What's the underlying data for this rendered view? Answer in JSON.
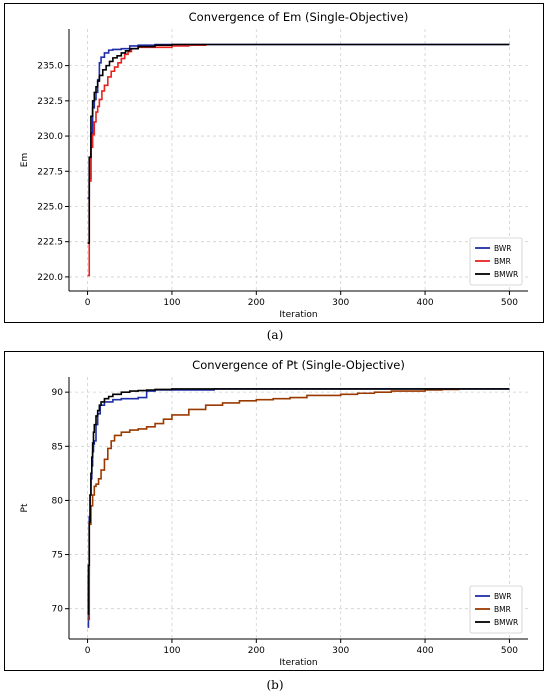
{
  "chart_data": [
    {
      "type": "line",
      "title": "Convergence of Em (Single-Objective)",
      "xlabel": "Iteration",
      "ylabel": "Em",
      "xlim": [
        -22,
        522
      ],
      "ylim": [
        219.0,
        237.6
      ],
      "xticks": [
        0,
        100,
        200,
        300,
        400,
        500
      ],
      "yticks": [
        220.0,
        222.5,
        225.0,
        227.5,
        230.0,
        232.5,
        235.0
      ],
      "ytick_labels": [
        "220.0",
        "222.5",
        "225.0",
        "227.5",
        "230.0",
        "232.5",
        "235.0"
      ],
      "grid": true,
      "legend": "bottom-right",
      "series": [
        {
          "name": "BWR",
          "color": "#1f2fa8",
          "x": [
            0,
            2,
            4,
            6,
            8,
            10,
            12,
            14,
            16,
            20,
            25,
            30,
            40,
            50,
            60,
            80,
            100,
            500
          ],
          "y": [
            225.6,
            227.0,
            230.2,
            232.0,
            232.6,
            233.1,
            234.0,
            235.2,
            235.6,
            235.9,
            236.1,
            236.15,
            236.2,
            236.4,
            236.45,
            236.5,
            236.5,
            236.5
          ]
        },
        {
          "name": "BMR",
          "color": "#e8231f",
          "x": [
            0,
            2,
            4,
            6,
            8,
            10,
            12,
            14,
            17,
            20,
            24,
            28,
            32,
            36,
            40,
            44,
            48,
            52,
            60,
            80,
            100,
            120,
            140
          ],
          "y": [
            220.1,
            226.8,
            229.2,
            230.1,
            231.0,
            231.7,
            232.1,
            232.6,
            233.2,
            233.6,
            234.2,
            234.6,
            234.9,
            235.2,
            235.5,
            235.8,
            236.0,
            236.2,
            236.3,
            236.3,
            236.4,
            236.45,
            236.5
          ]
        },
        {
          "name": "BMWR",
          "color": "#000000",
          "x": [
            0,
            2,
            4,
            6,
            8,
            10,
            12,
            14,
            18,
            22,
            26,
            30,
            35,
            40,
            45,
            50,
            60,
            80,
            100,
            500
          ],
          "y": [
            222.4,
            228.5,
            231.4,
            232.5,
            233.1,
            233.5,
            233.9,
            234.3,
            234.7,
            235.0,
            235.3,
            235.55,
            235.7,
            235.9,
            236.05,
            236.2,
            236.35,
            236.45,
            236.5,
            236.5
          ]
        }
      ]
    },
    {
      "type": "line",
      "title": "Convergence of Pt (Single-Objective)",
      "xlabel": "Iteration",
      "ylabel": "Pt",
      "xlim": [
        -22,
        522
      ],
      "ylim": [
        67.2,
        91.4
      ],
      "xticks": [
        0,
        100,
        200,
        300,
        400,
        500
      ],
      "yticks": [
        70,
        75,
        80,
        85,
        90
      ],
      "ytick_labels": [
        "70",
        "75",
        "80",
        "85",
        "90"
      ],
      "grid": true,
      "legend": "bottom-right",
      "series": [
        {
          "name": "BWR",
          "color": "#1f2fa8",
          "x": [
            0,
            1,
            2,
            3,
            4,
            5,
            6,
            7,
            8,
            10,
            12,
            15,
            20,
            30,
            40,
            60,
            70,
            80,
            100,
            150,
            500
          ],
          "y": [
            68.3,
            73.0,
            78.5,
            80.5,
            82.0,
            83.2,
            84.5,
            85.2,
            85.5,
            87.0,
            88.0,
            88.8,
            89.1,
            89.3,
            89.4,
            89.5,
            90.1,
            90.2,
            90.2,
            90.3,
            90.3
          ]
        },
        {
          "name": "BMR",
          "color": "#9b3a00",
          "x": [
            0,
            2,
            4,
            6,
            8,
            10,
            13,
            16,
            20,
            24,
            28,
            32,
            40,
            50,
            60,
            70,
            80,
            90,
            100,
            120,
            140,
            160,
            180,
            200,
            220,
            240,
            260,
            300,
            320,
            340,
            360,
            400,
            420,
            440
          ],
          "y": [
            69.0,
            77.8,
            79.5,
            80.5,
            81.3,
            81.5,
            82.0,
            82.8,
            83.8,
            84.8,
            85.5,
            86.0,
            86.3,
            86.5,
            86.6,
            86.8,
            87.1,
            87.5,
            87.9,
            88.4,
            88.8,
            89.0,
            89.2,
            89.3,
            89.4,
            89.5,
            89.7,
            89.8,
            89.9,
            90.0,
            90.1,
            90.2,
            90.25,
            90.3
          ]
        },
        {
          "name": "BMWR",
          "color": "#000000",
          "x": [
            0,
            1,
            2,
            3,
            4,
            5,
            6,
            7,
            8,
            10,
            12,
            14,
            16,
            20,
            25,
            30,
            40,
            50,
            60,
            70,
            80,
            100,
            150,
            500
          ],
          "y": [
            69.5,
            74.0,
            78.0,
            80.5,
            82.5,
            84.0,
            85.3,
            86.3,
            87.0,
            87.8,
            88.3,
            88.8,
            89.1,
            89.4,
            89.6,
            89.8,
            90.0,
            90.1,
            90.15,
            90.2,
            90.25,
            90.3,
            90.3,
            90.3
          ]
        }
      ]
    }
  ],
  "captions": [
    "(a)",
    "(b)"
  ]
}
